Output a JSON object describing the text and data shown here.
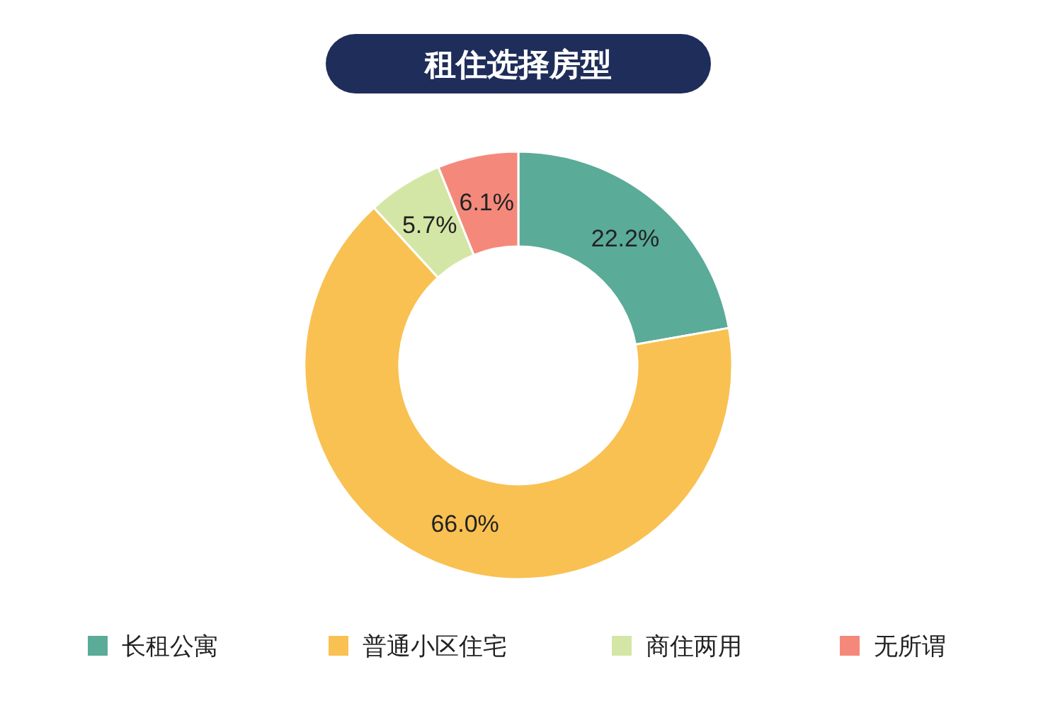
{
  "chart_data": {
    "type": "donut",
    "title": "租住选择房型",
    "categories": [
      "长租公寓",
      "普通小区住宅",
      "商住两用",
      "无所谓"
    ],
    "values": [
      22.2,
      66.0,
      5.7,
      6.1
    ],
    "colors": [
      "#5aab98",
      "#f9c152",
      "#d4e6a5",
      "#f4897b"
    ],
    "value_labels": [
      "22.2%",
      "66.0%",
      "5.7%",
      "6.1%"
    ],
    "legend": "bottom"
  }
}
